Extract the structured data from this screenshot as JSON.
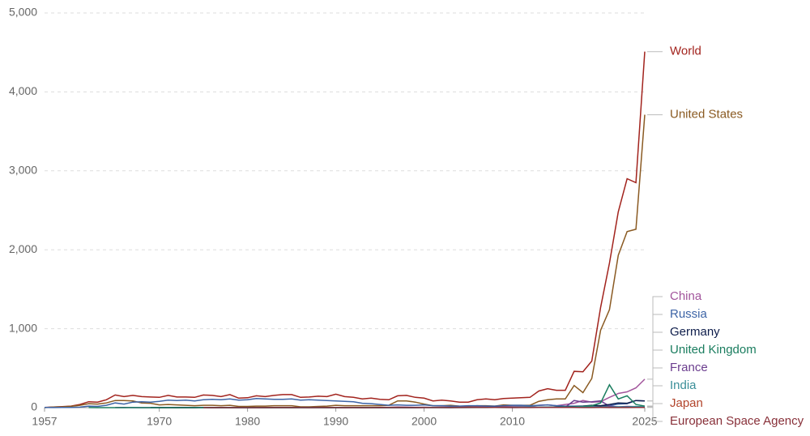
{
  "chart_data": {
    "type": "line",
    "x": [
      1957,
      1958,
      1959,
      1960,
      1961,
      1962,
      1963,
      1964,
      1965,
      1966,
      1967,
      1968,
      1969,
      1970,
      1971,
      1972,
      1973,
      1974,
      1975,
      1976,
      1977,
      1978,
      1979,
      1980,
      1981,
      1982,
      1983,
      1984,
      1985,
      1986,
      1987,
      1988,
      1989,
      1990,
      1991,
      1992,
      1993,
      1994,
      1995,
      1996,
      1997,
      1998,
      1999,
      2000,
      2001,
      2002,
      2003,
      2004,
      2005,
      2006,
      2007,
      2008,
      2009,
      2010,
      2011,
      2012,
      2013,
      2014,
      2015,
      2016,
      2017,
      2018,
      2019,
      2020,
      2021,
      2022,
      2023,
      2024,
      2025
    ],
    "xlim": [
      1957,
      2025
    ],
    "xticks": [
      1957,
      1970,
      1980,
      1990,
      2000,
      2010,
      2025
    ],
    "ylim": [
      0,
      5000
    ],
    "yticks": [
      0,
      {
        "value": 1000,
        "label": "1,000"
      },
      {
        "value": 2000,
        "label": "2,000"
      },
      {
        "value": 3000,
        "label": "3,000"
      },
      {
        "value": 4000,
        "label": "4,000"
      },
      {
        "value": 5000,
        "label": "5,000"
      }
    ],
    "grid": true,
    "series": [
      {
        "name": "World",
        "color": "#a2231d",
        "values": [
          2,
          8,
          13,
          20,
          40,
          75,
          70,
          100,
          160,
          140,
          155,
          140,
          135,
          130,
          155,
          135,
          135,
          130,
          160,
          155,
          140,
          165,
          120,
          125,
          150,
          140,
          155,
          165,
          165,
          130,
          135,
          145,
          140,
          170,
          140,
          130,
          110,
          120,
          105,
          100,
          150,
          155,
          130,
          120,
          85,
          95,
          85,
          70,
          70,
          100,
          110,
          100,
          115,
          120,
          125,
          130,
          210,
          240,
          220,
          220,
          460,
          455,
          590,
          1270,
          1830,
          2480,
          2900,
          2850,
          4510
        ]
      },
      {
        "name": "United States",
        "color": "#8a5a22",
        "values": [
          0,
          7,
          10,
          16,
          30,
          50,
          45,
          60,
          90,
          90,
          85,
          60,
          55,
          35,
          40,
          35,
          30,
          25,
          30,
          30,
          25,
          30,
          15,
          15,
          20,
          20,
          25,
          25,
          25,
          10,
          10,
          15,
          20,
          30,
          25,
          25,
          25,
          25,
          25,
          30,
          85,
          85,
          70,
          45,
          25,
          25,
          30,
          20,
          15,
          25,
          25,
          20,
          35,
          30,
          30,
          30,
          80,
          100,
          110,
          110,
          280,
          190,
          370,
          980,
          1240,
          1930,
          2230,
          2260,
          3710
        ]
      },
      {
        "name": "China",
        "color": "#a2559c",
        "values": [
          null,
          null,
          null,
          null,
          null,
          null,
          null,
          null,
          null,
          null,
          null,
          null,
          null,
          1,
          1,
          0,
          0,
          1,
          3,
          2,
          1,
          1,
          0,
          0,
          3,
          1,
          2,
          2,
          1,
          2,
          2,
          4,
          2,
          2,
          3,
          2,
          1,
          2,
          2,
          2,
          7,
          6,
          4,
          5,
          3,
          5,
          6,
          8,
          5,
          8,
          10,
          12,
          15,
          20,
          22,
          18,
          30,
          35,
          25,
          40,
          55,
          90,
          70,
          75,
          130,
          180,
          200,
          250,
          360
        ]
      },
      {
        "name": "Russia",
        "color": "#3d64a6",
        "values": [
          2,
          1,
          3,
          3,
          6,
          20,
          15,
          30,
          60,
          45,
          70,
          75,
          70,
          80,
          95,
          90,
          95,
          85,
          100,
          105,
          100,
          110,
          95,
          100,
          115,
          110,
          105,
          105,
          110,
          95,
          100,
          95,
          90,
          85,
          80,
          75,
          55,
          50,
          40,
          30,
          35,
          30,
          30,
          35,
          25,
          25,
          20,
          20,
          25,
          25,
          20,
          20,
          25,
          30,
          30,
          25,
          30,
          35,
          25,
          20,
          20,
          20,
          25,
          20,
          25,
          45,
          50,
          90,
          85
        ]
      },
      {
        "name": "Japan",
        "color": "#b2452c",
        "values": [
          null,
          null,
          null,
          null,
          null,
          null,
          null,
          null,
          null,
          null,
          null,
          null,
          null,
          1,
          1,
          1,
          0,
          1,
          2,
          2,
          3,
          2,
          2,
          2,
          2,
          3,
          3,
          3,
          1,
          3,
          3,
          2,
          3,
          3,
          1,
          2,
          2,
          3,
          2,
          4,
          4,
          3,
          1,
          2,
          3,
          4,
          3,
          4,
          4,
          5,
          3,
          3,
          5,
          5,
          3,
          5,
          6,
          5,
          6,
          8,
          10,
          8,
          6,
          8,
          7,
          6,
          9,
          7,
          5
        ]
      },
      {
        "name": "France",
        "color": "#6b3d8e",
        "values": [
          null,
          null,
          null,
          null,
          null,
          null,
          null,
          null,
          1,
          2,
          0,
          0,
          0,
          1,
          1,
          0,
          0,
          0,
          2,
          0,
          0,
          0,
          0,
          0,
          1,
          0,
          0,
          1,
          1,
          1,
          2,
          1,
          1,
          1,
          0,
          1,
          1,
          2,
          1,
          2,
          1,
          1,
          1,
          3,
          2,
          2,
          3,
          2,
          2,
          4,
          3,
          2,
          3,
          1,
          2,
          3,
          3,
          3,
          3,
          5,
          90,
          70,
          75,
          85,
          20,
          10,
          15,
          12,
          10
        ]
      },
      {
        "name": "Germany",
        "color": "#0e1d4b",
        "values": [
          null,
          null,
          null,
          null,
          null,
          null,
          null,
          null,
          null,
          null,
          null,
          null,
          1,
          0,
          0,
          0,
          1,
          0,
          2,
          0,
          0,
          0,
          0,
          0,
          0,
          0,
          0,
          0,
          0,
          1,
          0,
          1,
          0,
          0,
          1,
          1,
          0,
          0,
          0,
          0,
          0,
          0,
          0,
          1,
          2,
          1,
          0,
          2,
          3,
          2,
          3,
          4,
          2,
          2,
          3,
          2,
          3,
          5,
          6,
          8,
          12,
          20,
          30,
          25,
          40,
          60,
          55,
          90,
          85
        ]
      },
      {
        "name": "United Kingdom",
        "color": "#1a7d5f",
        "values": [
          null,
          null,
          null,
          null,
          null,
          1,
          0,
          0,
          0,
          0,
          1,
          0,
          0,
          0,
          1,
          0,
          0,
          1,
          0,
          0,
          0,
          0,
          0,
          0,
          1,
          0,
          0,
          0,
          0,
          0,
          0,
          0,
          0,
          0,
          1,
          0,
          0,
          0,
          0,
          0,
          1,
          0,
          1,
          2,
          1,
          1,
          2,
          1,
          1,
          1,
          1,
          2,
          1,
          2,
          2,
          3,
          3,
          4,
          5,
          8,
          10,
          15,
          25,
          60,
          290,
          110,
          150,
          40,
          20
        ]
      },
      {
        "name": "India",
        "color": "#3a8e98",
        "values": [
          null,
          null,
          null,
          null,
          null,
          null,
          null,
          null,
          null,
          null,
          null,
          null,
          null,
          null,
          null,
          null,
          null,
          null,
          1,
          0,
          0,
          0,
          1,
          1,
          0,
          1,
          0,
          0,
          0,
          0,
          1,
          0,
          0,
          0,
          1,
          0,
          1,
          1,
          1,
          1,
          1,
          0,
          1,
          1,
          0,
          2,
          1,
          1,
          1,
          2,
          2,
          3,
          2,
          5,
          8,
          7,
          6,
          6,
          3,
          3,
          6,
          8,
          6,
          6,
          5,
          10,
          8,
          15,
          8
        ]
      },
      {
        "name": "European Space Agency",
        "color": "#883039",
        "values": [
          null,
          null,
          null,
          null,
          null,
          null,
          null,
          null,
          null,
          null,
          null,
          null,
          null,
          null,
          null,
          null,
          null,
          null,
          1,
          0,
          1,
          0,
          1,
          0,
          0,
          1,
          1,
          1,
          1,
          1,
          0,
          1,
          1,
          1,
          0,
          1,
          0,
          0,
          2,
          1,
          1,
          1,
          1,
          1,
          1,
          1,
          1,
          1,
          2,
          2,
          3,
          2,
          2,
          1,
          1,
          1,
          2,
          2,
          2,
          2,
          2,
          1,
          1,
          2,
          1,
          1,
          1,
          2,
          2
        ]
      }
    ]
  }
}
